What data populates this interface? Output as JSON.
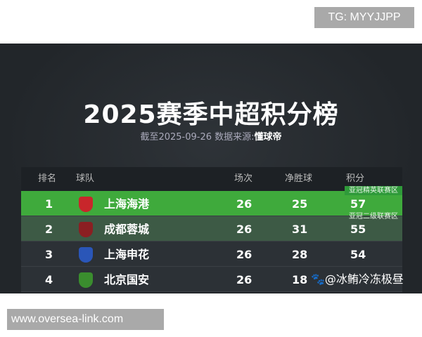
{
  "watermarks": {
    "tg": "TG: MYYJJPP",
    "site": "www.oversea-link.com",
    "weibo": "🐾@冰鲔冷冻极昼"
  },
  "title": "2025赛季中超积分榜",
  "subtitle": {
    "prefix": "截至2025-09-26 数据来源:",
    "source": "懂球帝"
  },
  "headers": {
    "rank": "排名",
    "team": "球队",
    "played": "场次",
    "gd": "净胜球",
    "points": "积分"
  },
  "zones": {
    "elite": "亚冠精英联赛区",
    "two": "亚冠二级联赛区"
  },
  "rows": [
    {
      "rank": "1",
      "team": "上海海港",
      "played": "26",
      "gd": "25",
      "points": "57",
      "logo_color": "#c8262b"
    },
    {
      "rank": "2",
      "team": "成都蓉城",
      "played": "26",
      "gd": "31",
      "points": "55",
      "logo_color": "#8b1f22"
    },
    {
      "rank": "3",
      "team": "上海申花",
      "played": "26",
      "gd": "28",
      "points": "54",
      "logo_color": "#2a56b8"
    },
    {
      "rank": "4",
      "team": "北京国安",
      "played": "26",
      "gd": "18",
      "points": ""
    }
  ]
}
